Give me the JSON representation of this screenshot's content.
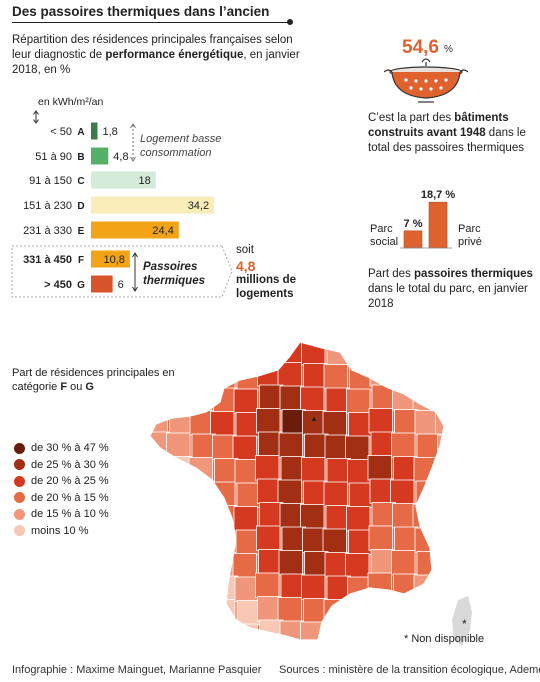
{
  "header": {
    "title": "Des passoires thermiques dans l’ancien",
    "subtitle_part1": "Répartition des résidences principales françaises selon leur diagnostic de ",
    "subtitle_bold": "performance énergétique",
    "subtitle_part2": ", en janvier 2018, en %"
  },
  "chart_data": [
    {
      "type": "bar",
      "orientation": "horizontal",
      "unit_label": "en kWh/m²/an",
      "categories": [
        "< 50",
        "51 à 90",
        "91 à 150",
        "151 à 230",
        "231 à 330",
        "331 à 450",
        "> 450"
      ],
      "classes": [
        "A",
        "B",
        "C",
        "D",
        "E",
        "F",
        "G"
      ],
      "values": [
        1.8,
        4.8,
        18,
        34.2,
        24.4,
        10.8,
        6
      ],
      "value_labels": [
        "1,8",
        "4,8",
        "18",
        "34,2",
        "24,4",
        "10,8",
        "6"
      ],
      "colors": [
        "#3d7a4a",
        "#56b06a",
        "#d3ebd8",
        "#fbedb9",
        "#f2a316",
        "#f2a316",
        "#d9532b"
      ],
      "annotations": {
        "low_consumption": "Logement basse consommation",
        "passoires": "Passoires thermiques",
        "soit": "soit",
        "soit_value": "4,8",
        "soit_unit": "millions de logements"
      }
    },
    {
      "type": "bar",
      "categories": [
        "Parc social",
        "Parc privé"
      ],
      "values": [
        7,
        18.7
      ],
      "value_labels": [
        "7 %",
        "18,7 %"
      ],
      "color": "#e0632f",
      "caption_prefix": "Part des ",
      "caption_bold": "passoires thermiques",
      "caption_suffix": " dans le total du parc, en janvier 2018"
    }
  ],
  "highlight": {
    "value": "54,6",
    "unit": "%",
    "text_prefix": "C’est la part des ",
    "text_bold": "bâtiments construits avant 1948",
    "text_suffix": " dans le total des passoires thermiques"
  },
  "map": {
    "title_prefix": "Part de résidences principales en catégorie ",
    "title_f": "F",
    "title_or": " ou ",
    "title_g": "G",
    "legend": [
      {
        "label": "de 30 % à 47 %",
        "color": "#6b1d0c"
      },
      {
        "label": "de 25 % à 30 %",
        "color": "#a22e14"
      },
      {
        "label": "de 20 % à 25 %",
        "color": "#d5391f"
      },
      {
        "label": "de 20 % à 15 %",
        "color": "#e56a45"
      },
      {
        "label": "de 15 % à 10 %",
        "color": "#f0967a"
      },
      {
        "label": "moins 10 %",
        "color": "#f7c8b5"
      }
    ],
    "not_available": "* Non disponible",
    "asterisk": "*"
  },
  "footer": {
    "credits": "Infographie : Maxime Mainguet, Marianne Pasquier",
    "sources": "Sources : ministère de la transition écologique, Ademe"
  }
}
